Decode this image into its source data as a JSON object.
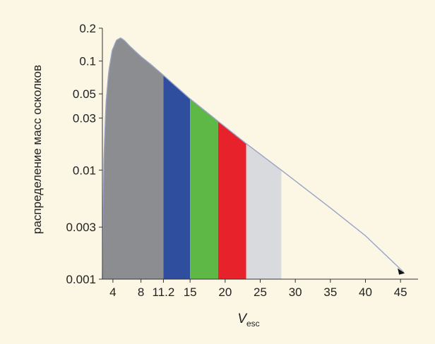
{
  "chart_data": {
    "type": "area",
    "ylabel": "распределение масс осколков",
    "xlabel": {
      "var": "V",
      "sub": "esc"
    },
    "x_scale": "linear",
    "y_scale": "log",
    "xlim": [
      2.5,
      47.5
    ],
    "ylim": [
      0.001,
      0.2
    ],
    "x_ticks": [
      4,
      8,
      11.2,
      15,
      20,
      25,
      30,
      35,
      40,
      45
    ],
    "x_tick_labels": [
      "4",
      "8",
      "11.2",
      "15",
      "20",
      "25",
      "30",
      "35",
      "40",
      "45"
    ],
    "y_ticks": [
      0.2,
      0.1,
      0.05,
      0.03,
      0.01,
      0.003,
      0.001
    ],
    "y_tick_labels": [
      "0.2",
      "0.1",
      "0.05",
      "0.03",
      "0.01",
      "0.003",
      "0.001"
    ],
    "curve": {
      "x": [
        2.5,
        2.7,
        3.0,
        3.4,
        3.9,
        4.5,
        5.1,
        5.6,
        6.5,
        8.0,
        9.5,
        11.2,
        15,
        19,
        23,
        28,
        35,
        40,
        45.5
      ],
      "y": [
        0.001,
        0.012,
        0.04,
        0.08,
        0.125,
        0.155,
        0.163,
        0.155,
        0.135,
        0.11,
        0.092,
        0.074,
        0.045,
        0.028,
        0.0175,
        0.01,
        0.0045,
        0.0025,
        0.00115
      ],
      "color": "#9aa3c7"
    },
    "bands": [
      {
        "from": 2.5,
        "to": 11.2,
        "color": "#8c8d91"
      },
      {
        "from": 11.2,
        "to": 15,
        "color": "#2f4f9e"
      },
      {
        "from": 15,
        "to": 19,
        "color": "#5db846"
      },
      {
        "from": 19,
        "to": 23,
        "color": "#e8222a"
      },
      {
        "from": 23,
        "to": 28,
        "color": "#d9dade"
      }
    ],
    "background": "#fbf7e4",
    "grid": false
  }
}
